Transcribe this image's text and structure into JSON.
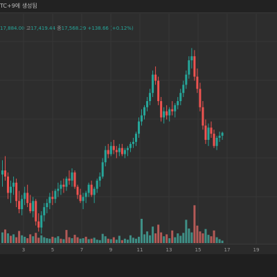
{
  "header": {
    "title": "TC+9에 생성됨"
  },
  "ohlc": {
    "open_text": "17,884.00",
    "high_label": "고",
    "high_text": "17,419.44",
    "low_label": "종",
    "low_text": "17,568.29",
    "change_text": "+138.66 (+0.12%)"
  },
  "colors": {
    "up": "#26a69a",
    "down": "#ef5350",
    "volume_up": "#3f8f86",
    "volume_down": "#b45a57",
    "background": "#2d2d2d",
    "grid": "#363636"
  },
  "chart_data": {
    "type": "candlestick",
    "x_ticks": [
      "3",
      "5",
      "7",
      "9",
      "11",
      "13",
      "15",
      "17",
      "19"
    ],
    "ylim": [
      17000,
      17900
    ],
    "candles": [
      [
        17180,
        17250,
        17120,
        17200
      ],
      [
        17200,
        17270,
        17150,
        17170
      ],
      [
        17170,
        17190,
        17060,
        17090
      ],
      [
        17090,
        17150,
        17040,
        17120
      ],
      [
        17120,
        17170,
        17080,
        17140
      ],
      [
        17140,
        17160,
        17020,
        17050
      ],
      [
        17050,
        17100,
        16990,
        17010
      ],
      [
        17010,
        17080,
        16980,
        17060
      ],
      [
        17060,
        17120,
        17030,
        17090
      ],
      [
        17090,
        17130,
        17020,
        17040
      ],
      [
        17040,
        17080,
        16990,
        17000
      ],
      [
        17000,
        17070,
        16970,
        17050
      ],
      [
        17050,
        17060,
        16930,
        16950
      ],
      [
        16950,
        16990,
        16900,
        16920
      ],
      [
        16920,
        17000,
        16890,
        16980
      ],
      [
        16980,
        17040,
        16950,
        17020
      ],
      [
        17020,
        17060,
        16990,
        17040
      ],
      [
        17040,
        17090,
        17010,
        17070
      ],
      [
        17070,
        17100,
        17030,
        17060
      ],
      [
        17060,
        17110,
        17040,
        17100
      ],
      [
        17100,
        17140,
        17070,
        17110
      ],
      [
        17110,
        17150,
        17080,
        17130
      ],
      [
        17130,
        17160,
        17090,
        17120
      ],
      [
        17120,
        17170,
        17100,
        17160
      ],
      [
        17160,
        17200,
        17130,
        17150
      ],
      [
        17150,
        17210,
        17120,
        17190
      ],
      [
        17190,
        17200,
        17110,
        17120
      ],
      [
        17120,
        17130,
        17060,
        17080
      ],
      [
        17080,
        17110,
        17040,
        17050
      ],
      [
        17050,
        17090,
        17010,
        17070
      ],
      [
        17070,
        17100,
        17040,
        17090
      ],
      [
        17090,
        17140,
        17070,
        17130
      ],
      [
        17130,
        17150,
        17070,
        17080
      ],
      [
        17080,
        17120,
        17040,
        17110
      ],
      [
        17110,
        17160,
        17090,
        17150
      ],
      [
        17150,
        17190,
        17120,
        17170
      ],
      [
        17170,
        17260,
        17160,
        17240
      ],
      [
        17240,
        17320,
        17220,
        17300
      ],
      [
        17300,
        17330,
        17260,
        17280
      ],
      [
        17280,
        17340,
        17270,
        17320
      ],
      [
        17320,
        17350,
        17280,
        17300
      ],
      [
        17300,
        17320,
        17260,
        17290
      ],
      [
        17290,
        17330,
        17270,
        17310
      ],
      [
        17310,
        17330,
        17270,
        17280
      ],
      [
        17280,
        17310,
        17260,
        17300
      ],
      [
        17300,
        17320,
        17270,
        17310
      ],
      [
        17310,
        17340,
        17290,
        17330
      ],
      [
        17330,
        17360,
        17310,
        17340
      ],
      [
        17340,
        17390,
        17320,
        17380
      ],
      [
        17380,
        17460,
        17360,
        17440
      ],
      [
        17440,
        17500,
        17420,
        17470
      ],
      [
        17470,
        17520,
        17450,
        17510
      ],
      [
        17510,
        17560,
        17490,
        17540
      ],
      [
        17540,
        17600,
        17520,
        17580
      ],
      [
        17580,
        17690,
        17560,
        17670
      ],
      [
        17670,
        17710,
        17620,
        17640
      ],
      [
        17640,
        17660,
        17520,
        17540
      ],
      [
        17540,
        17560,
        17440,
        17460
      ],
      [
        17460,
        17510,
        17430,
        17490
      ],
      [
        17490,
        17520,
        17450,
        17470
      ],
      [
        17470,
        17510,
        17440,
        17500
      ],
      [
        17500,
        17540,
        17470,
        17490
      ],
      [
        17490,
        17530,
        17460,
        17520
      ],
      [
        17520,
        17560,
        17500,
        17540
      ],
      [
        17540,
        17600,
        17520,
        17580
      ],
      [
        17580,
        17640,
        17560,
        17620
      ],
      [
        17620,
        17690,
        17600,
        17670
      ],
      [
        17670,
        17760,
        17650,
        17740
      ],
      [
        17740,
        17800,
        17700,
        17760
      ],
      [
        17760,
        17790,
        17640,
        17660
      ],
      [
        17660,
        17700,
        17580,
        17600
      ],
      [
        17600,
        17630,
        17490,
        17510
      ],
      [
        17510,
        17540,
        17400,
        17420
      ],
      [
        17420,
        17450,
        17330,
        17350
      ],
      [
        17350,
        17430,
        17320,
        17410
      ],
      [
        17410,
        17440,
        17360,
        17380
      ],
      [
        17380,
        17400,
        17310,
        17320
      ],
      [
        17320,
        17370,
        17300,
        17360
      ],
      [
        17360,
        17390,
        17340,
        17370
      ],
      [
        17370,
        17390,
        17350,
        17385
      ]
    ],
    "volumes": [
      {
        "v": 2.2,
        "up": true
      },
      {
        "v": 2.8,
        "up": false
      },
      {
        "v": 2.0,
        "up": true
      },
      {
        "v": 1.5,
        "up": false
      },
      {
        "v": 1.8,
        "up": true
      },
      {
        "v": 1.2,
        "up": false
      },
      {
        "v": 2.5,
        "up": false
      },
      {
        "v": 1.6,
        "up": true
      },
      {
        "v": 1.3,
        "up": true
      },
      {
        "v": 1.0,
        "up": false
      },
      {
        "v": 1.8,
        "up": false
      },
      {
        "v": 1.4,
        "up": true
      },
      {
        "v": 2.1,
        "up": false
      },
      {
        "v": 1.1,
        "up": false
      },
      {
        "v": 1.6,
        "up": true
      },
      {
        "v": 1.2,
        "up": true
      },
      {
        "v": 1.0,
        "up": true
      },
      {
        "v": 0.9,
        "up": true
      },
      {
        "v": 1.3,
        "up": false
      },
      {
        "v": 1.1,
        "up": true
      },
      {
        "v": 1.4,
        "up": true
      },
      {
        "v": 0.9,
        "up": false
      },
      {
        "v": 0.8,
        "up": true
      },
      {
        "v": 2.7,
        "up": false
      },
      {
        "v": 1.2,
        "up": false
      },
      {
        "v": 1.0,
        "up": true
      },
      {
        "v": 1.7,
        "up": false
      },
      {
        "v": 1.2,
        "up": false
      },
      {
        "v": 0.9,
        "up": true
      },
      {
        "v": 1.0,
        "up": true
      },
      {
        "v": 1.3,
        "up": false
      },
      {
        "v": 0.8,
        "up": true
      },
      {
        "v": 0.9,
        "up": false
      },
      {
        "v": 1.1,
        "up": true
      },
      {
        "v": 0.7,
        "up": true
      },
      {
        "v": 0.6,
        "up": true
      },
      {
        "v": 1.9,
        "up": true
      },
      {
        "v": 1.4,
        "up": true
      },
      {
        "v": 0.9,
        "up": false
      },
      {
        "v": 0.8,
        "up": true
      },
      {
        "v": 1.2,
        "up": false
      },
      {
        "v": 0.7,
        "up": true
      },
      {
        "v": 1.5,
        "up": true
      },
      {
        "v": 0.6,
        "up": false
      },
      {
        "v": 0.9,
        "up": true
      },
      {
        "v": 0.7,
        "up": true
      },
      {
        "v": 1.6,
        "up": true
      },
      {
        "v": 1.1,
        "up": true
      },
      {
        "v": 0.9,
        "up": true
      },
      {
        "v": 1.3,
        "up": true
      },
      {
        "v": 5.0,
        "up": true
      },
      {
        "v": 1.8,
        "up": true
      },
      {
        "v": 2.4,
        "up": true
      },
      {
        "v": 1.6,
        "up": true
      },
      {
        "v": 3.4,
        "up": true
      },
      {
        "v": 2.0,
        "up": false
      },
      {
        "v": 3.8,
        "up": false
      },
      {
        "v": 2.2,
        "up": false
      },
      {
        "v": 1.4,
        "up": true
      },
      {
        "v": 1.8,
        "up": false
      },
      {
        "v": 1.0,
        "up": true
      },
      {
        "v": 2.6,
        "up": false
      },
      {
        "v": 1.2,
        "up": true
      },
      {
        "v": 2.0,
        "up": true
      },
      {
        "v": 1.5,
        "up": true
      },
      {
        "v": 2.1,
        "up": true
      },
      {
        "v": 4.8,
        "up": true
      },
      {
        "v": 3.0,
        "up": true
      },
      {
        "v": 2.2,
        "up": true
      },
      {
        "v": 7.8,
        "up": false
      },
      {
        "v": 3.6,
        "up": false
      },
      {
        "v": 2.4,
        "up": false
      },
      {
        "v": 2.0,
        "up": false
      },
      {
        "v": 2.9,
        "up": true
      },
      {
        "v": 1.7,
        "up": true
      },
      {
        "v": 1.4,
        "up": false
      },
      {
        "v": 2.6,
        "up": false
      },
      {
        "v": 1.2,
        "up": true
      },
      {
        "v": 0.8,
        "up": true
      },
      {
        "v": 0.5,
        "up": true
      }
    ]
  }
}
